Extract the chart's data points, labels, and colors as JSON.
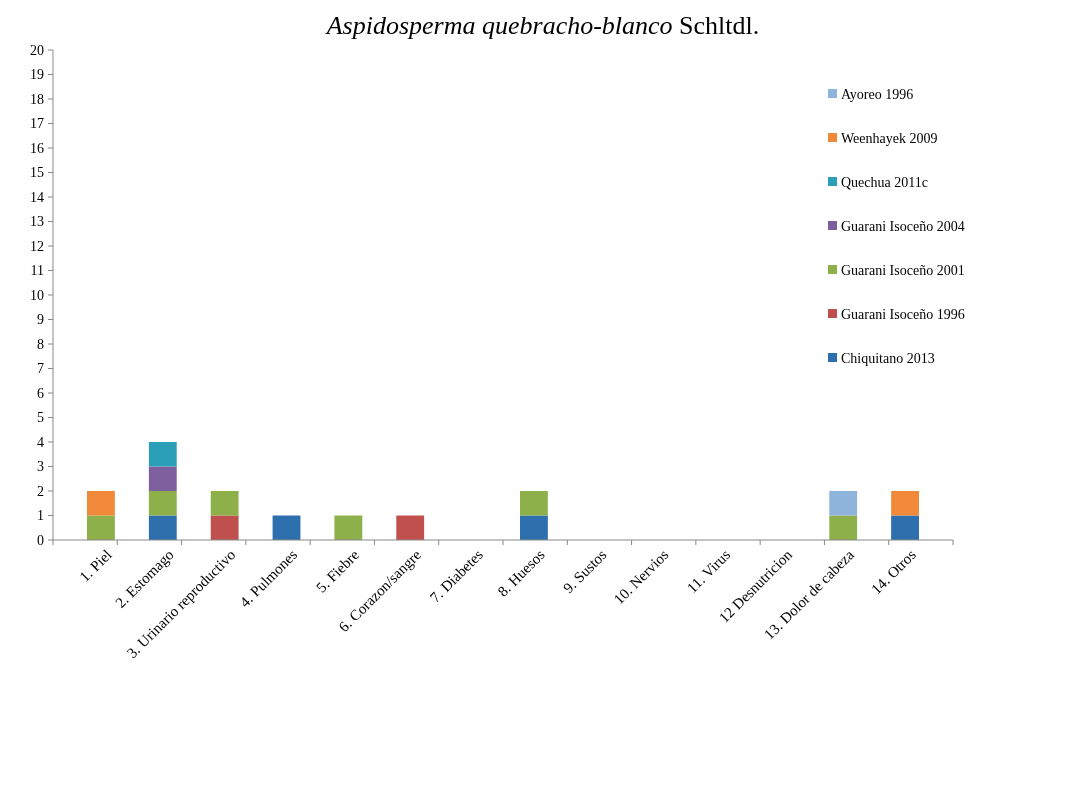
{
  "chart_data": {
    "type": "bar",
    "stacked": true,
    "title": "Aspidosperma quebracho-blanco Schltdl.",
    "categories": [
      "1. Piel",
      "2. Estomago",
      "3. Urinario reproductivo",
      "4. Pulmones",
      "5. Fiebre",
      "6. Corazon/sangre",
      "7. Diabetes",
      "8. Huesos",
      "9. Sustos",
      "10. Nervios",
      "11. Virus",
      "12 Desnutricion",
      "13. Dolor de cabeza",
      "14. Otros"
    ],
    "series": [
      {
        "name": "Chiquitano 2013",
        "color": "#2e6fad",
        "values": [
          0,
          1,
          0,
          1,
          0,
          0,
          0,
          1,
          0,
          0,
          0,
          0,
          0,
          1
        ]
      },
      {
        "name": "Guarani Isoceño 1996",
        "color": "#c0504d",
        "values": [
          0,
          0,
          1,
          0,
          0,
          1,
          0,
          0,
          0,
          0,
          0,
          0,
          0,
          0
        ]
      },
      {
        "name": "Guarani Isoceño 2001",
        "color": "#8db04a",
        "values": [
          1,
          1,
          1,
          0,
          1,
          0,
          0,
          1,
          0,
          0,
          0,
          0,
          1,
          0
        ]
      },
      {
        "name": "Guarani Isoceño 2004",
        "color": "#7d5f9d",
        "values": [
          0,
          1,
          0,
          0,
          0,
          0,
          0,
          0,
          0,
          0,
          0,
          0,
          0,
          0
        ]
      },
      {
        "name": "Quechua 2011c",
        "color": "#2b9fb8",
        "values": [
          0,
          1,
          0,
          0,
          0,
          0,
          0,
          0,
          0,
          0,
          0,
          0,
          0,
          0
        ]
      },
      {
        "name": "Weenhayek 2009",
        "color": "#f08a3a",
        "values": [
          1,
          0,
          0,
          0,
          0,
          0,
          0,
          0,
          0,
          0,
          0,
          0,
          0,
          1
        ]
      },
      {
        "name": "Ayoreo 1996",
        "color": "#8fb4dc",
        "values": [
          0,
          0,
          0,
          0,
          0,
          0,
          0,
          0,
          0,
          0,
          0,
          0,
          1,
          0
        ]
      }
    ],
    "ylim": [
      0,
      20
    ],
    "yticks": [
      0,
      1,
      2,
      3,
      4,
      5,
      6,
      7,
      8,
      9,
      10,
      11,
      12,
      13,
      14,
      15,
      16,
      17,
      18,
      19,
      20
    ],
    "grid": false,
    "legend": "right"
  }
}
